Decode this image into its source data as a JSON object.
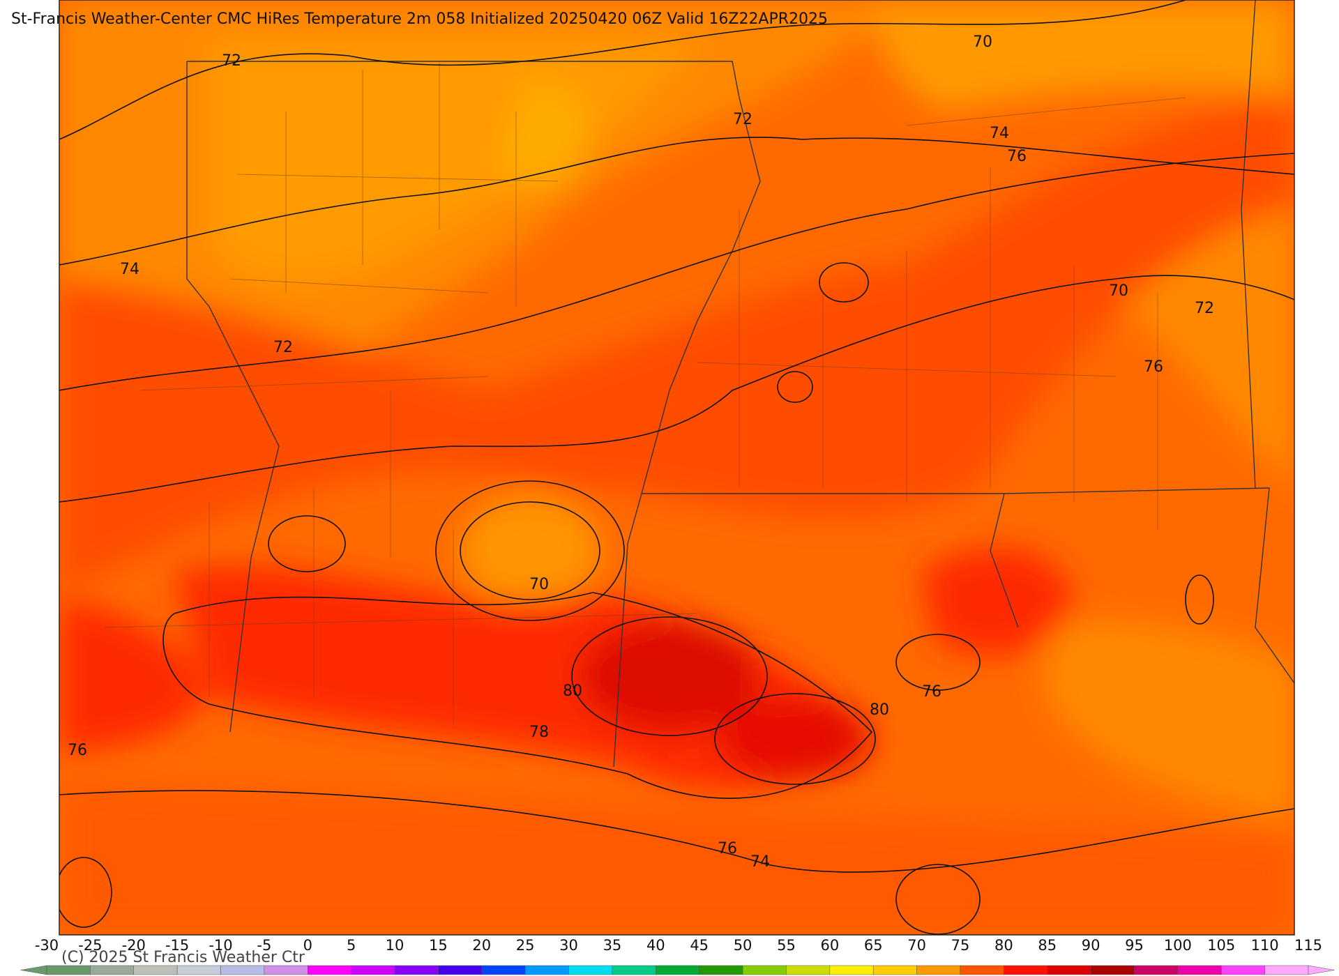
{
  "title": "St-Francis Weather-Center CMC HiRes Temperature 2m  058 Initialized 20250420 06Z Valid 16Z22APR2025",
  "copyright": "(C) 2025 St Francis Weather Ctr",
  "contour_labels": [
    72,
    70,
    72,
    74,
    76,
    74,
    70,
    72,
    72,
    76,
    70,
    80,
    76,
    80,
    78,
    76,
    76,
    74
  ],
  "colorbar": {
    "ticks": [
      -30,
      -25,
      -20,
      -15,
      -10,
      -5,
      0,
      5,
      10,
      15,
      20,
      25,
      30,
      35,
      40,
      45,
      50,
      55,
      60,
      65,
      70,
      75,
      80,
      85,
      90,
      95,
      100,
      105,
      110,
      115
    ],
    "colors": [
      "#6a9a6a",
      "#9aaa9a",
      "#b8c0b8",
      "#c8ccd8",
      "#b8bce8",
      "#d090e8",
      "#ff00ff",
      "#cc00ff",
      "#8800ff",
      "#4400ee",
      "#0044ff",
      "#0099ff",
      "#00ddee",
      "#00cc88",
      "#00aa33",
      "#229900",
      "#88cc00",
      "#ccdd00",
      "#ffee00",
      "#ffcc00",
      "#ff9900",
      "#ff5500",
      "#ff1100",
      "#dd0000",
      "#aa0000",
      "#cc0066",
      "#ee00aa",
      "#ff44ff",
      "#ffaaff"
    ]
  }
}
